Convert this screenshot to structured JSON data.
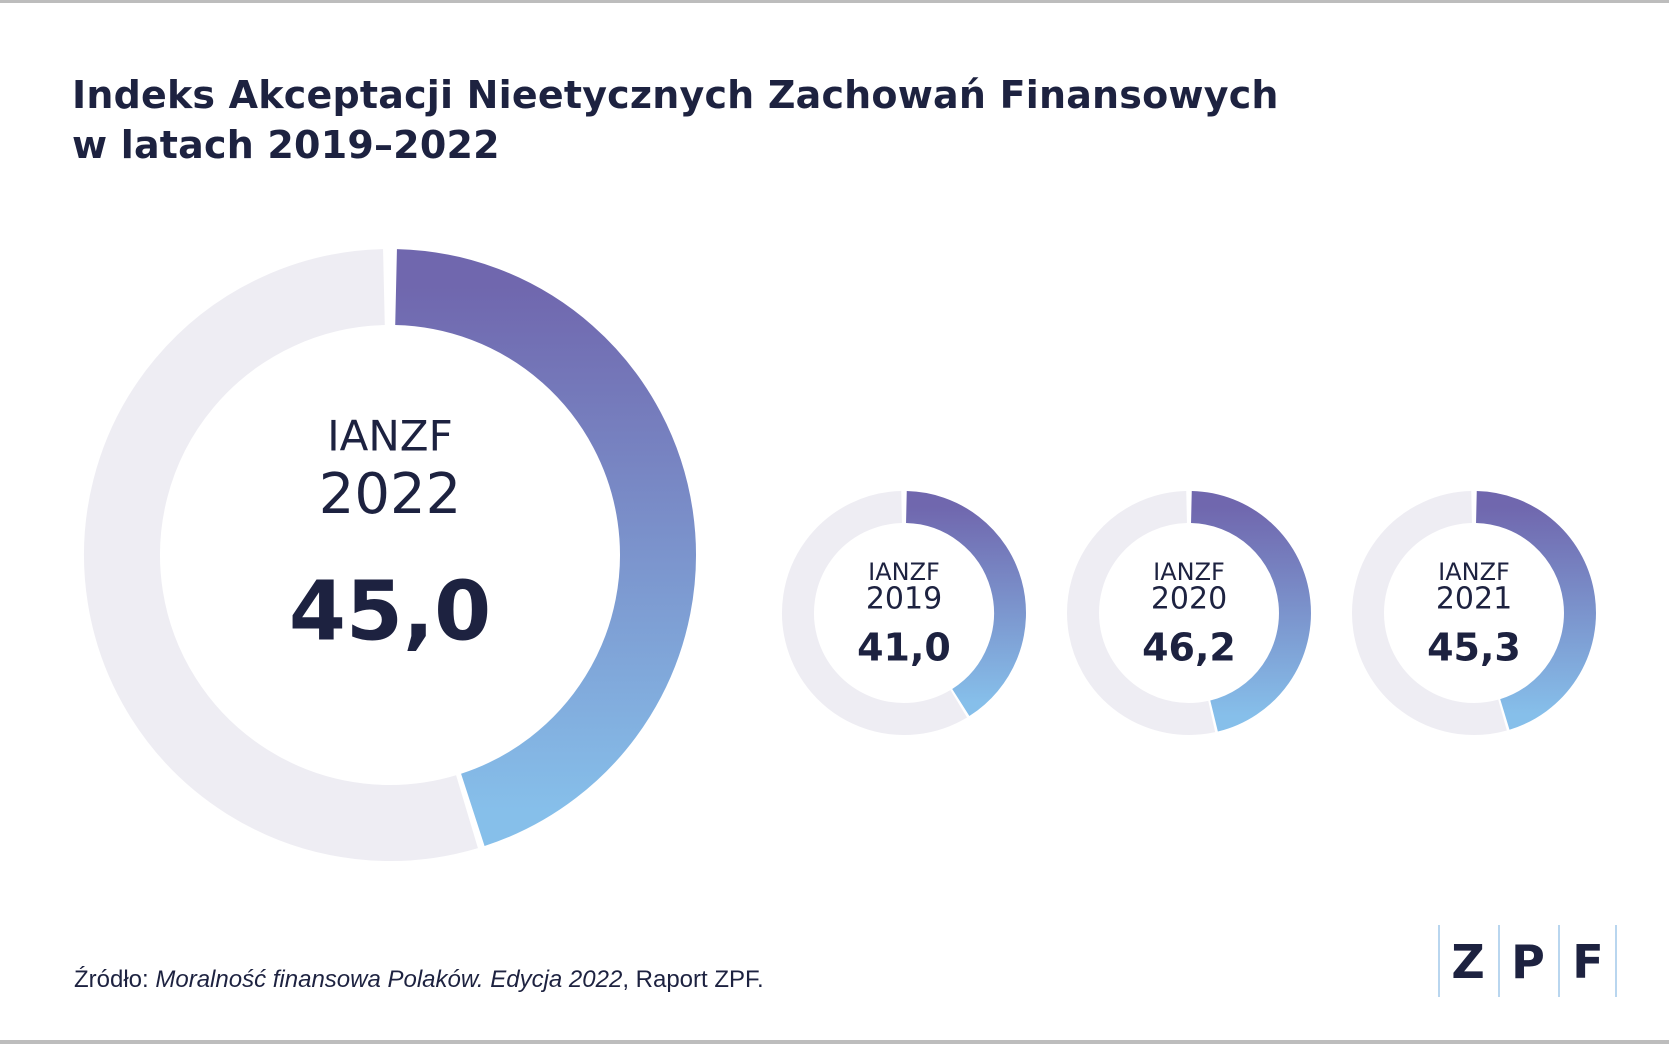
{
  "title": {
    "line1": "Indeks Akceptacji Nieetycznych Zachowań Finansowych",
    "line2": "w latach 2019–2022"
  },
  "chart_data": {
    "type": "donut",
    "value_scale_max": 100,
    "colors": {
      "track": "#eeedf3",
      "gradient_start": "#7067ae",
      "gradient_end": "#86bfea",
      "text": "#1d2240"
    },
    "items": [
      {
        "label": "IANZF",
        "year": "2022",
        "value": 45.0,
        "value_text": "45,0"
      },
      {
        "label": "IANZF",
        "year": "2019",
        "value": 41.0,
        "value_text": "41,0"
      },
      {
        "label": "IANZF",
        "year": "2020",
        "value": 46.2,
        "value_text": "46,2"
      },
      {
        "label": "IANZF",
        "year": "2021",
        "value": 45.3,
        "value_text": "45,3"
      }
    ]
  },
  "source": {
    "prefix": "Źródło: ",
    "italic": "Moralność finansowa Polaków. Edycja 2022",
    "suffix": ", Raport ZPF."
  },
  "logo": {
    "letters": [
      "Z",
      "P",
      "F"
    ]
  }
}
